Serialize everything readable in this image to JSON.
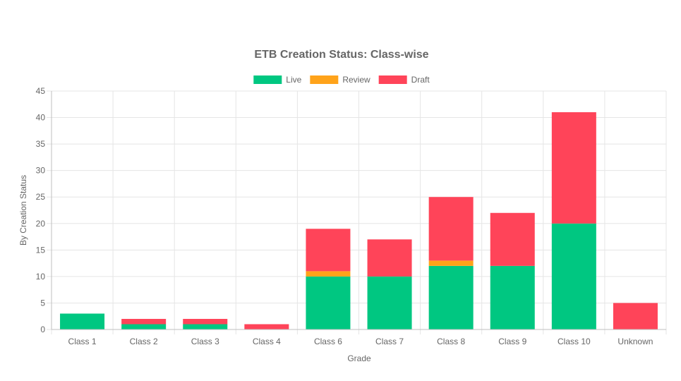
{
  "chart_data": {
    "type": "bar",
    "stacked": true,
    "title": "ETB Creation Status: Class-wise",
    "xlabel": "Grade",
    "ylabel": "By Creation Status",
    "ylim": [
      0,
      45
    ],
    "yticks": [
      0,
      5,
      10,
      15,
      20,
      25,
      30,
      35,
      40,
      45
    ],
    "grid": true,
    "legend_position": "top",
    "categories": [
      "Class 1",
      "Class 2",
      "Class 3",
      "Class 4",
      "Class 6",
      "Class 7",
      "Class 8",
      "Class 9",
      "Class 10",
      "Unknown"
    ],
    "series": [
      {
        "name": "Live",
        "color": "#00c781",
        "values": [
          3,
          1,
          1,
          0,
          10,
          10,
          12,
          12,
          20,
          0
        ]
      },
      {
        "name": "Review",
        "color": "#ffa31a",
        "values": [
          0,
          0,
          0,
          0,
          1,
          0,
          1,
          0,
          0,
          0
        ]
      },
      {
        "name": "Draft",
        "color": "#ff4459",
        "values": [
          0,
          1,
          1,
          1,
          8,
          7,
          12,
          10,
          21,
          5
        ]
      }
    ],
    "grid_color": "#e5e5e5",
    "axis_color": "#bfbfbf"
  }
}
